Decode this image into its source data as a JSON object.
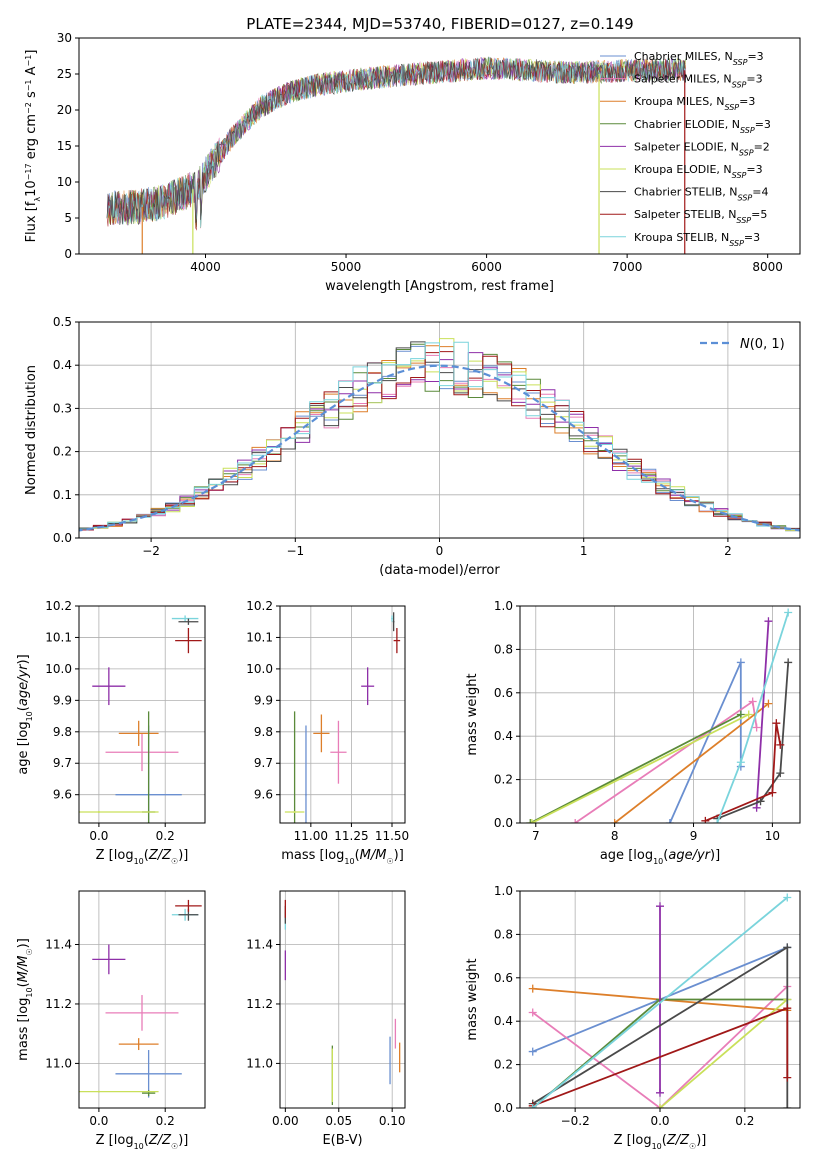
{
  "figure_title": "PLATE=2344, MJD=53740, FIBERID=0127, z=0.149",
  "colors": {
    "chabrier_miles": "#6a8fd0",
    "salpeter_miles": "#e87db8",
    "kroupa_miles": "#dd7f2a",
    "chabrier_elodie": "#5a8a3a",
    "salpeter_elodie": "#8e2fa8",
    "kroupa_elodie": "#c9e05a",
    "chabrier_stelib": "#4a4a4a",
    "salpeter_stelib": "#a01818",
    "kroupa_stelib": "#7ad4dc"
  },
  "chart_data": [
    {
      "id": "spectrum",
      "type": "line",
      "title": "PLATE=2344, MJD=53740, FIBERID=0127, z=0.149",
      "xlabel": "wavelength [Angstrom, rest frame]",
      "ylabel": "Flux [f_λ 10^-17 erg cm^-2 s^-1 A^-1]",
      "xlim": [
        3100,
        8230
      ],
      "ylim": [
        0,
        30
      ],
      "xticks": [
        4000,
        5000,
        6000,
        7000,
        8000
      ],
      "yticks": [
        0,
        5,
        10,
        15,
        20,
        25,
        30
      ],
      "grid": false,
      "legend_position": "top-right",
      "legend": [
        {
          "label": "Chabrier MILES, N",
          "sub": "SSP",
          "tail": "=3",
          "color_key": "chabrier_miles"
        },
        {
          "label": "Salpeter MILES, N",
          "sub": "SSP",
          "tail": "=3",
          "color_key": "salpeter_miles"
        },
        {
          "label": "Kroupa MILES, N",
          "sub": "SSP",
          "tail": "=3",
          "color_key": "kroupa_miles"
        },
        {
          "label": "Chabrier ELODIE, N",
          "sub": "SSP",
          "tail": "=3",
          "color_key": "chabrier_elodie"
        },
        {
          "label": "Salpeter ELODIE, N",
          "sub": "SSP",
          "tail": "=2",
          "color_key": "salpeter_elodie"
        },
        {
          "label": "Kroupa ELODIE, N",
          "sub": "SSP",
          "tail": "=3",
          "color_key": "kroupa_elodie"
        },
        {
          "label": "Chabrier STELIB, N",
          "sub": "SSP",
          "tail": "=4",
          "color_key": "chabrier_stelib"
        },
        {
          "label": "Salpeter STELIB, N",
          "sub": "SSP",
          "tail": "=5",
          "color_key": "salpeter_stelib"
        },
        {
          "label": "Kroupa STELIB, N",
          "sub": "SSP",
          "tail": "=3",
          "color_key": "kroupa_stelib"
        }
      ],
      "continuum": [
        [
          3300,
          6.3
        ],
        [
          3500,
          6.5
        ],
        [
          3700,
          7.2
        ],
        [
          3850,
          8.5
        ],
        [
          3950,
          9.5
        ],
        [
          4050,
          12.5
        ],
        [
          4200,
          16.5
        ],
        [
          4400,
          20.5
        ],
        [
          4600,
          22.5
        ],
        [
          4800,
          23.5
        ],
        [
          5000,
          24
        ],
        [
          5200,
          24.5
        ],
        [
          5500,
          25
        ],
        [
          5800,
          25.5
        ],
        [
          6000,
          25.8
        ],
        [
          6300,
          25.5
        ],
        [
          6600,
          25.2
        ],
        [
          6800,
          25.3
        ],
        [
          7000,
          25.5
        ],
        [
          7200,
          25.6
        ],
        [
          7420,
          25.6
        ]
      ],
      "model_cuts": [
        {
          "color_key": "kroupa_miles",
          "x": 3550,
          "y_from": 6.5
        },
        {
          "color_key": "kroupa_elodie",
          "x": 3910,
          "y_from": 9
        },
        {
          "color_key": "kroupa_elodie",
          "x": 6800,
          "y_from": 25
        },
        {
          "color_key": "salpeter_stelib",
          "x": 7410,
          "y_from": 25.5
        }
      ]
    },
    {
      "id": "residuals",
      "type": "histogram",
      "xlabel": "(data-model)/error",
      "ylabel": "Normed distribution",
      "xlim": [
        -2.5,
        2.5
      ],
      "ylim": [
        0,
        0.5
      ],
      "xticks": [
        -2,
        -1,
        0,
        1,
        2
      ],
      "yticks": [
        0.0,
        0.1,
        0.2,
        0.3,
        0.4,
        0.5
      ],
      "grid": true,
      "legend_position": "top-right",
      "reference_label": "N(0,1)",
      "bin_width": 0.1
    },
    {
      "id": "age_vs_Z",
      "type": "errorbar",
      "xlabel": "Z [log10(Z/Z☉)]",
      "ylabel": "age [log10(age/yr)]",
      "xlim": [
        -0.06,
        0.32
      ],
      "ylim": [
        9.51,
        10.2
      ],
      "xticks": [
        0.0,
        0.2
      ],
      "yticks": [
        9.6,
        9.7,
        9.8,
        9.9,
        10.0,
        10.1,
        10.2
      ],
      "grid": true,
      "points": [
        {
          "color_key": "chabrier_miles",
          "x": 0.15,
          "xerr": 0.1,
          "y": 9.6,
          "yerr": 0.22
        },
        {
          "color_key": "salpeter_miles",
          "x": 0.13,
          "xerr": 0.11,
          "y": 9.735,
          "yerr": 0.06
        },
        {
          "color_key": "kroupa_miles",
          "x": 0.12,
          "xerr": 0.06,
          "y": 9.795,
          "yerr": 0.04
        },
        {
          "color_key": "chabrier_elodie",
          "x": 0.15,
          "xerr": 0.02,
          "y": 9.545,
          "yerr": 0.32
        },
        {
          "color_key": "kroupa_elodie",
          "x": 0.0,
          "xerr": 0.18,
          "y": 9.545,
          "yerr": 0.0
        },
        {
          "color_key": "salpeter_elodie",
          "x": 0.03,
          "xerr": 0.05,
          "y": 9.945,
          "yerr": 0.06
        },
        {
          "color_key": "kroupa_stelib",
          "x": 0.26,
          "xerr": 0.04,
          "y": 10.16,
          "yerr": 0.01
        },
        {
          "color_key": "chabrier_stelib",
          "x": 0.27,
          "xerr": 0.03,
          "y": 10.15,
          "yerr": 0.01
        },
        {
          "color_key": "salpeter_stelib",
          "x": 0.27,
          "xerr": 0.04,
          "y": 10.09,
          "yerr": 0.04
        }
      ]
    },
    {
      "id": "age_vs_mass",
      "type": "errorbar",
      "xlabel": "mass [log10(M/M☉)]",
      "ylabel": "",
      "xlim": [
        10.81,
        11.58
      ],
      "ylim": [
        9.51,
        10.2
      ],
      "xticks": [
        11.0,
        11.25,
        11.5
      ],
      "yticks": [
        9.6,
        9.7,
        9.8,
        9.9,
        10.0,
        10.1,
        10.2
      ],
      "grid": true,
      "points": [
        {
          "color_key": "chabrier_miles",
          "x": 10.97,
          "xerr": 0.005,
          "y": 9.6,
          "yerr": 0.22
        },
        {
          "color_key": "salpeter_miles",
          "x": 11.17,
          "xerr": 0.05,
          "y": 9.735,
          "yerr": 0.1
        },
        {
          "color_key": "kroupa_miles",
          "x": 11.065,
          "xerr": 0.05,
          "y": 9.795,
          "yerr": 0.06
        },
        {
          "color_key": "chabrier_elodie",
          "x": 10.9,
          "xerr": 0.005,
          "y": 9.545,
          "yerr": 0.32
        },
        {
          "color_key": "kroupa_elodie",
          "x": 10.9,
          "xerr": 0.06,
          "y": 9.545,
          "yerr": 0.0
        },
        {
          "color_key": "salpeter_elodie",
          "x": 11.35,
          "xerr": 0.04,
          "y": 9.945,
          "yerr": 0.06
        },
        {
          "color_key": "kroupa_stelib",
          "x": 11.5,
          "xerr": 0.005,
          "y": 10.16,
          "yerr": 0.01
        },
        {
          "color_key": "chabrier_stelib",
          "x": 11.51,
          "xerr": 0.005,
          "y": 10.15,
          "yerr": 0.03
        },
        {
          "color_key": "salpeter_stelib",
          "x": 11.53,
          "xerr": 0.02,
          "y": 10.09,
          "yerr": 0.04
        }
      ]
    },
    {
      "id": "weight_vs_age",
      "type": "line",
      "xlabel": "age [log10(age/yr)]",
      "ylabel": "mass weight",
      "xlim": [
        6.8,
        10.35
      ],
      "ylim": [
        0.0,
        1.0
      ],
      "xticks": [
        7,
        8,
        9,
        10
      ],
      "yticks": [
        0.0,
        0.2,
        0.4,
        0.6,
        0.8,
        1.0
      ],
      "grid": true,
      "series": [
        {
          "color_key": "chabrier_miles",
          "points": [
            [
              8.7,
              0.0
            ],
            [
              9.6,
              0.74
            ],
            [
              9.6,
              0.26
            ]
          ]
        },
        {
          "color_key": "salpeter_miles",
          "points": [
            [
              7.5,
              0.0
            ],
            [
              9.75,
              0.56
            ],
            [
              9.8,
              0.44
            ]
          ]
        },
        {
          "color_key": "kroupa_miles",
          "points": [
            [
              8.0,
              0.0
            ],
            [
              9.95,
              0.55
            ]
          ]
        },
        {
          "color_key": "chabrier_elodie",
          "points": [
            [
              6.93,
              0.0
            ],
            [
              9.6,
              0.5
            ]
          ]
        },
        {
          "color_key": "kroupa_elodie",
          "points": [
            [
              6.95,
              0.0
            ],
            [
              9.7,
              0.5
            ]
          ]
        },
        {
          "color_key": "salpeter_elodie",
          "points": [
            [
              9.8,
              0.07
            ],
            [
              9.95,
              0.93
            ]
          ]
        },
        {
          "color_key": "chabrier_stelib",
          "points": [
            [
              9.3,
              0.02
            ],
            [
              9.85,
              0.1
            ],
            [
              10.1,
              0.23
            ],
            [
              10.2,
              0.74
            ]
          ]
        },
        {
          "color_key": "salpeter_stelib",
          "points": [
            [
              9.15,
              0.01
            ],
            [
              10.0,
              0.14
            ],
            [
              10.05,
              0.46
            ],
            [
              10.1,
              0.36
            ]
          ]
        },
        {
          "color_key": "kroupa_stelib",
          "points": [
            [
              9.3,
              0.0
            ],
            [
              9.6,
              0.28
            ],
            [
              10.2,
              0.97
            ]
          ]
        }
      ]
    },
    {
      "id": "mass_vs_Z",
      "type": "errorbar",
      "xlabel": "Z [log10(Z/Z☉)]",
      "ylabel": "mass [log10(M/M☉)]",
      "xlim": [
        -0.06,
        0.32
      ],
      "ylim": [
        10.85,
        11.58
      ],
      "xticks": [
        0.0,
        0.2
      ],
      "yticks": [
        11.0,
        11.2,
        11.4
      ],
      "grid": true,
      "points": [
        {
          "color_key": "chabrier_miles",
          "x": 0.15,
          "xerr": 0.1,
          "y": 10.965,
          "yerr": 0.08
        },
        {
          "color_key": "salpeter_miles",
          "x": 0.13,
          "xerr": 0.11,
          "y": 11.17,
          "yerr": 0.06
        },
        {
          "color_key": "kroupa_miles",
          "x": 0.12,
          "xerr": 0.06,
          "y": 11.065,
          "yerr": 0.02
        },
        {
          "color_key": "chabrier_elodie",
          "x": 0.15,
          "xerr": 0.02,
          "y": 10.9,
          "yerr": 0.01
        },
        {
          "color_key": "kroupa_elodie",
          "x": 0.0,
          "xerr": 0.18,
          "y": 10.905,
          "yerr": 0.0
        },
        {
          "color_key": "salpeter_elodie",
          "x": 0.03,
          "xerr": 0.05,
          "y": 11.35,
          "yerr": 0.05
        },
        {
          "color_key": "kroupa_stelib",
          "x": 0.26,
          "xerr": 0.04,
          "y": 11.5,
          "yerr": 0.02
        },
        {
          "color_key": "chabrier_stelib",
          "x": 0.27,
          "xerr": 0.03,
          "y": 11.5,
          "yerr": 0.02
        },
        {
          "color_key": "salpeter_stelib",
          "x": 0.27,
          "xerr": 0.04,
          "y": 11.53,
          "yerr": 0.02
        }
      ]
    },
    {
      "id": "mass_vs_ebv",
      "type": "errorbar",
      "xlabel": "E(B-V)",
      "ylabel": "",
      "xlim": [
        -0.005,
        0.112
      ],
      "ylim": [
        10.85,
        11.58
      ],
      "xticks": [
        0.0,
        0.05,
        0.1
      ],
      "yticks": [
        11.0,
        11.2,
        11.4
      ],
      "grid": true,
      "points": [
        {
          "color_key": "chabrier_miles",
          "x": 0.098,
          "xerr": 0.0,
          "y": 11.01,
          "yerr": 0.08
        },
        {
          "color_key": "salpeter_miles",
          "x": 0.103,
          "xerr": 0.0,
          "y": 11.1,
          "yerr": 0.05
        },
        {
          "color_key": "kroupa_miles",
          "x": 0.107,
          "xerr": 0.0,
          "y": 11.02,
          "yerr": 0.05
        },
        {
          "color_key": "chabrier_elodie",
          "x": 0.044,
          "xerr": 0.0,
          "y": 10.96,
          "yerr": 0.1
        },
        {
          "color_key": "kroupa_elodie",
          "x": 0.044,
          "xerr": 0.0,
          "y": 10.96,
          "yerr": 0.09
        },
        {
          "color_key": "salpeter_elodie",
          "x": 0.0,
          "xerr": 0.0,
          "y": 11.33,
          "yerr": 0.05
        },
        {
          "color_key": "kroupa_stelib",
          "x": 0.0,
          "xerr": 0.0,
          "y": 11.48,
          "yerr": 0.03
        },
        {
          "color_key": "chabrier_stelib",
          "x": 0.0,
          "xerr": 0.0,
          "y": 11.5,
          "yerr": 0.03
        },
        {
          "color_key": "salpeter_stelib",
          "x": 0.0,
          "xerr": 0.0,
          "y": 11.52,
          "yerr": 0.03
        }
      ]
    },
    {
      "id": "weight_vs_Z",
      "type": "line",
      "xlabel": "Z [log10(Z/Z☉)]",
      "ylabel": "mass weight",
      "xlim": [
        -0.33,
        0.33
      ],
      "ylim": [
        0.0,
        1.0
      ],
      "xticks": [
        -0.2,
        0.0,
        0.2
      ],
      "yticks": [
        0.0,
        0.2,
        0.4,
        0.6,
        0.8,
        1.0
      ],
      "grid": true,
      "series": [
        {
          "color_key": "chabrier_miles",
          "points": [
            [
              -0.3,
              0.26
            ],
            [
              0.3,
              0.74
            ]
          ]
        },
        {
          "color_key": "salpeter_miles",
          "points": [
            [
              -0.3,
              0.44
            ],
            [
              0.0,
              0.0
            ],
            [
              0.3,
              0.56
            ]
          ]
        },
        {
          "color_key": "kroupa_miles",
          "points": [
            [
              -0.3,
              0.55
            ],
            [
              0.3,
              0.45
            ]
          ]
        },
        {
          "color_key": "chabrier_elodie",
          "points": [
            [
              -0.3,
              0.0
            ],
            [
              0.0,
              0.5
            ],
            [
              0.3,
              0.5
            ]
          ]
        },
        {
          "color_key": "kroupa_elodie",
          "points": [
            [
              0.0,
              0.0
            ],
            [
              0.3,
              0.5
            ]
          ]
        },
        {
          "color_key": "salpeter_elodie",
          "points": [
            [
              0.0,
              0.07
            ],
            [
              0.0,
              0.93
            ]
          ]
        },
        {
          "color_key": "chabrier_stelib",
          "points": [
            [
              -0.3,
              0.02
            ],
            [
              0.3,
              0.74
            ],
            [
              0.3,
              0.0
            ]
          ]
        },
        {
          "color_key": "salpeter_stelib",
          "points": [
            [
              -0.3,
              0.01
            ],
            [
              0.3,
              0.46
            ],
            [
              0.3,
              0.14
            ]
          ]
        },
        {
          "color_key": "kroupa_stelib",
          "points": [
            [
              -0.3,
              0.0
            ],
            [
              0.3,
              0.97
            ]
          ]
        }
      ]
    }
  ]
}
